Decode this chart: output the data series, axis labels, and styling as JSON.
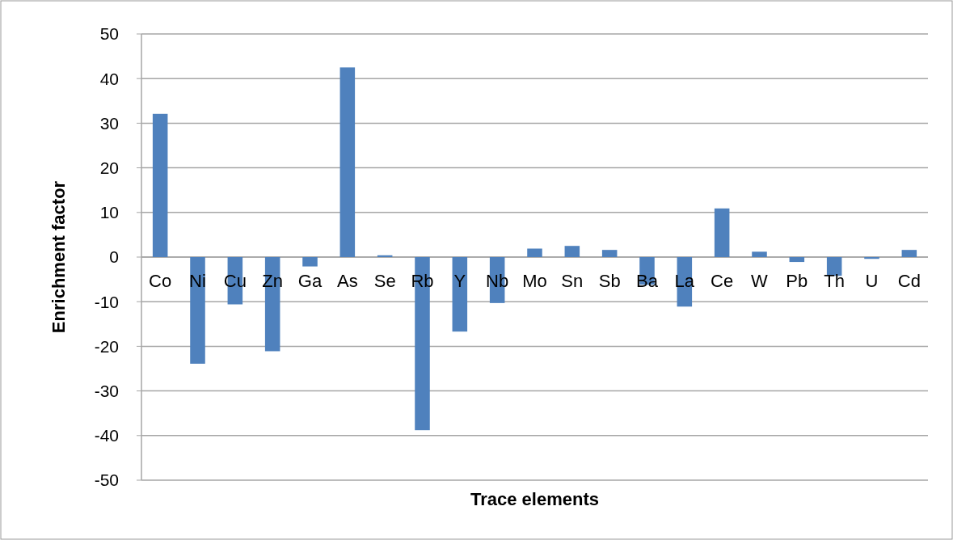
{
  "chart_data": {
    "type": "bar",
    "xlabel": "Trace elements",
    "ylabel": "Enrichment factor",
    "categories": [
      "Co",
      "Ni",
      "Cu",
      "Zn",
      "Ga",
      "As",
      "Se",
      "Rb",
      "Y",
      "Nb",
      "Mo",
      "Sn",
      "Sb",
      "Ba",
      "La",
      "Ce",
      "W",
      "Pb",
      "Th",
      "U",
      "Cd"
    ],
    "values": [
      32.1,
      -23.9,
      -10.6,
      -21.1,
      -2.1,
      42.5,
      0.4,
      -38.8,
      -16.7,
      -10.3,
      1.9,
      2.5,
      1.6,
      -6.2,
      -11.1,
      10.9,
      1.2,
      -1.1,
      -4.2,
      -0.4,
      1.6
    ],
    "color": "#4f81bd",
    "ylim": [
      -50,
      50
    ],
    "yticks": [
      -50,
      -40,
      -30,
      -20,
      -10,
      0,
      10,
      20,
      30,
      40,
      50
    ],
    "grid": "y"
  }
}
